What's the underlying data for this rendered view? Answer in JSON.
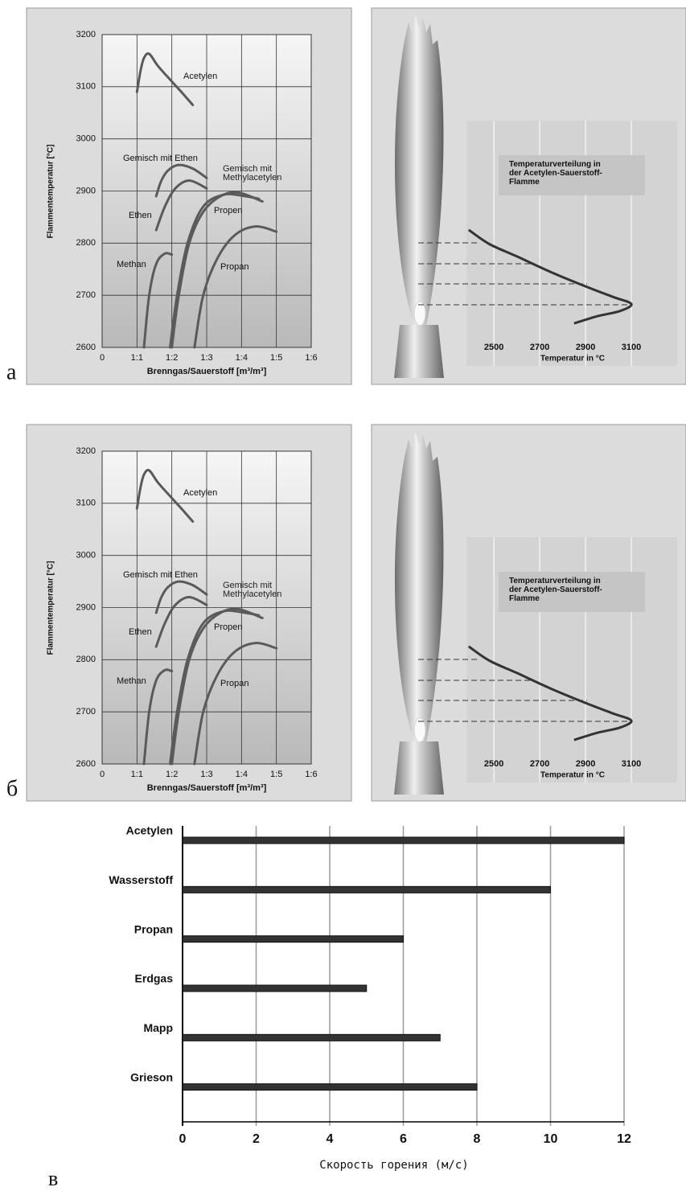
{
  "panel_labels": [
    "а",
    "б",
    "в"
  ],
  "chart_data": [
    {
      "type": "line",
      "y_label": "Flammentemperatur [°C]",
      "x_label": "Brenngas/Sauerstoff  [m³/m³]",
      "xlim": [
        0,
        6
      ],
      "xticks": [
        0,
        {
          "value": 1,
          "label": "1:1"
        },
        {
          "value": 2,
          "label": "1:2"
        },
        {
          "value": 3,
          "label": "1:3"
        },
        {
          "value": 4,
          "label": "1:4"
        },
        {
          "value": 5,
          "label": "1:5"
        },
        {
          "value": 6,
          "label": "1:6"
        }
      ],
      "ylim": [
        2600,
        3200
      ],
      "yticks": [
        2600,
        2700,
        2800,
        2900,
        3000,
        3100,
        3200
      ],
      "grid": true,
      "series": [
        {
          "name": "Acetylen",
          "color": "#5a5a5a",
          "x": [
            1.0,
            1.1,
            1.2,
            1.35,
            1.6,
            2.0,
            2.3,
            2.6
          ],
          "values": [
            3090,
            3130,
            3155,
            3163,
            3140,
            3110,
            3088,
            3065
          ]
        },
        {
          "name": "Gemisch mit Ethen",
          "color": "#5a5a5a",
          "x": [
            1.55,
            1.7,
            1.9,
            2.2,
            2.6,
            3.0
          ],
          "values": [
            2890,
            2920,
            2940,
            2950,
            2943,
            2925
          ]
        },
        {
          "name": "Ethen",
          "color": "#5a5a5a",
          "x": [
            1.55,
            1.8,
            2.1,
            2.5,
            3.0
          ],
          "values": [
            2825,
            2870,
            2905,
            2920,
            2905
          ]
        },
        {
          "name": "Gemisch mit Methylacetylen",
          "color": "#5a5a5a",
          "x": [
            2.0,
            2.2,
            2.5,
            2.9,
            3.4,
            3.9,
            4.6
          ],
          "values": [
            2600,
            2700,
            2800,
            2860,
            2890,
            2897,
            2880
          ]
        },
        {
          "name": "Propen",
          "color": "#5a5a5a",
          "x": [
            1.95,
            2.15,
            2.45,
            2.9,
            3.5,
            4.1,
            4.5
          ],
          "values": [
            2600,
            2700,
            2800,
            2870,
            2893,
            2890,
            2885
          ]
        },
        {
          "name": "Methan",
          "color": "#5a5a5a",
          "x": [
            1.2,
            1.35,
            1.55,
            1.8,
            2.0
          ],
          "values": [
            2600,
            2700,
            2760,
            2780,
            2778
          ]
        },
        {
          "name": "Propan",
          "color": "#5a5a5a",
          "x": [
            2.65,
            2.9,
            3.3,
            3.8,
            4.4,
            5.0
          ],
          "values": [
            2600,
            2700,
            2770,
            2815,
            2832,
            2822
          ]
        }
      ]
    },
    {
      "type": "line",
      "title": "Temperaturverteilung in der Acetylen-Sauerstoff-Flamme",
      "x_label": "Temperatur in  °C",
      "xlim": [
        2380,
        3300
      ],
      "xticks": [
        2500,
        2700,
        2900,
        3100
      ],
      "ylim": [
        0,
        13
      ],
      "grid": true,
      "color": "#333333",
      "x": [
        2390,
        2480,
        2600,
        2750,
        2900,
        3020,
        3100,
        3050,
        2950,
        2850
      ],
      "values": [
        6.8,
        6.0,
        5.3,
        4.4,
        3.6,
        3.0,
        2.6,
        2.2,
        1.9,
        1.5
      ]
    },
    {
      "type": "bar",
      "x_label": "Скорость горения (м/с)",
      "categories": [
        "Acetylen",
        "Wasserstoff",
        "Propan",
        "Erdgas",
        "Mapp",
        "Grieson"
      ],
      "values": [
        12,
        10,
        6,
        5,
        7,
        8
      ],
      "xlim": [
        0,
        12
      ],
      "xticks": [
        0,
        2,
        4,
        6,
        8,
        10,
        12
      ],
      "color": "#333333",
      "grid": true
    }
  ]
}
